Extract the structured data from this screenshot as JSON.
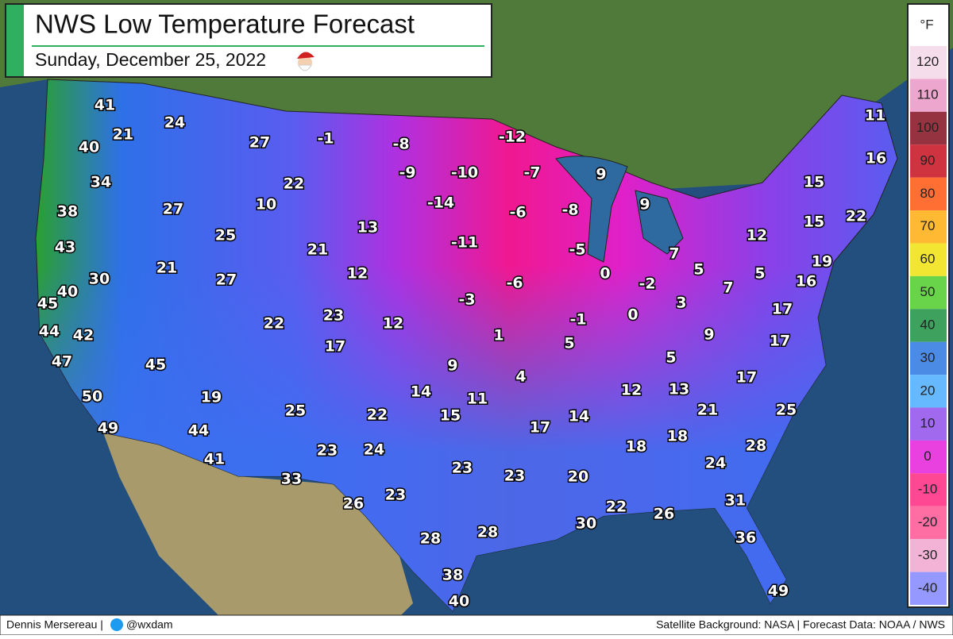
{
  "header": {
    "title": "NWS Low Temperature Forecast",
    "subtitle": "Sunday, December 25, 2022"
  },
  "city_temps": [
    41,
    21,
    24,
    27,
    -1,
    -8,
    -12,
    11,
    40,
    16,
    -9,
    -10,
    -7,
    9,
    34,
    22,
    15,
    -14,
    38,
    27,
    10,
    -6,
    -8,
    9,
    22,
    15,
    13,
    25,
    12,
    43,
    -11,
    -5,
    7,
    21,
    19,
    21,
    12,
    0,
    5,
    5,
    30,
    27,
    -6,
    -2,
    7,
    16,
    45,
    40,
    -3,
    3,
    17,
    22,
    23,
    12,
    -1,
    0,
    44,
    42,
    1,
    5,
    9,
    17,
    17,
    47,
    45,
    9,
    4,
    5,
    17,
    14,
    11,
    12,
    13,
    50,
    19,
    25,
    22,
    15,
    21,
    25,
    14,
    17,
    49,
    44,
    18,
    18,
    28,
    23,
    24,
    41,
    23,
    23,
    20,
    24,
    33,
    26,
    23,
    31,
    22,
    26,
    30,
    28,
    28,
    36,
    38,
    49,
    40
  ],
  "legend": {
    "unit": "°F",
    "ticks": [
      120,
      110,
      100,
      90,
      80,
      70,
      60,
      50,
      40,
      30,
      20,
      10,
      0,
      -10,
      -20,
      -30,
      -40
    ],
    "colors": [
      "#f4d4e6",
      "#e890c0",
      "#7a0010",
      "#c40010",
      "#ff4a00",
      "#ffa800",
      "#f0e000",
      "#44c81c",
      "#0e8a34",
      "#1e6ee0",
      "#40a8ff",
      "#8a44e8",
      "#e410d8",
      "#ff1a78",
      "#ff4a8c",
      "#f0a0cc",
      "#7a80ff"
    ]
  },
  "footer": {
    "author": "Dennis Mersereau |",
    "handle": "@wxdam",
    "credits": "Satellite Background: NASA | Forecast Data: NOAA / NWS"
  }
}
